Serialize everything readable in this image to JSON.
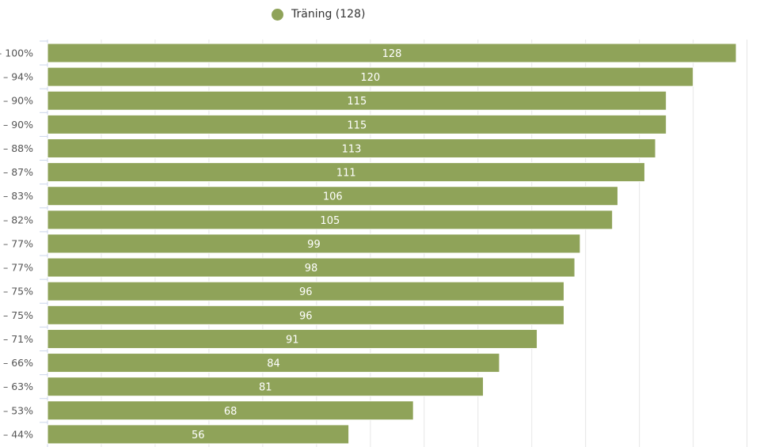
{
  "chart_data": {
    "type": "bar",
    "orientation": "horizontal",
    "title": "",
    "xlabel": "",
    "ylabel": "",
    "categories": [
      "– 100%",
      "– 94%",
      "– 90%",
      "– 90%",
      "– 88%",
      "– 87%",
      "– 83%",
      "– 82%",
      "– 77%",
      "– 77%",
      "– 75%",
      "– 75%",
      "– 71%",
      "– 66%",
      "– 63%",
      "– 53%",
      "– 44%"
    ],
    "series": [
      {
        "name": "Träning (128)",
        "color": "#8fa359",
        "values": [
          128,
          120,
          115,
          115,
          113,
          111,
          106,
          105,
          99,
          98,
          96,
          96,
          91,
          84,
          81,
          68,
          56
        ]
      }
    ],
    "xlim": [
      0,
      130
    ],
    "grid": true,
    "grid_step": 10,
    "legend_position": "top-center",
    "data_labels": true
  }
}
